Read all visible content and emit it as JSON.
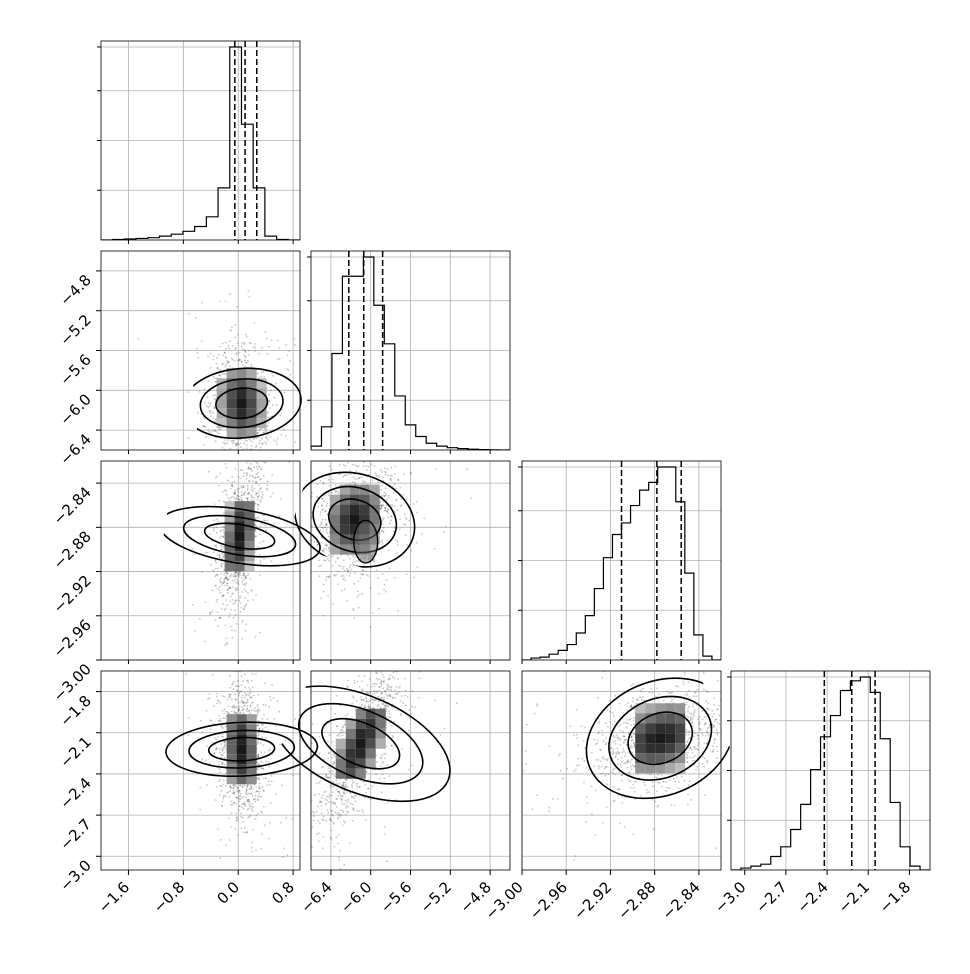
{
  "chart_data": {
    "type": "corner",
    "grid": true,
    "parameters": [
      {
        "range": [
          -2.0,
          0.9
        ],
        "ticks": [
          -1.6,
          -0.8,
          0.0,
          0.8
        ],
        "tick_labels": [
          "−1.6",
          "−0.8",
          "0.0",
          "0.8"
        ],
        "quantiles": [
          -0.05,
          0.1,
          0.27
        ],
        "hist": [
          0,
          0.003,
          0.005,
          0.008,
          0.012,
          0.02,
          0.03,
          0.045,
          0.07,
          0.12,
          0.27,
          1.0,
          0.6,
          0.27,
          0.02,
          0.003,
          0
        ]
      },
      {
        "range": [
          -6.6,
          -4.6
        ],
        "ticks": [
          -6.4,
          -6.0,
          -5.6,
          -5.2,
          -4.8
        ],
        "tick_labels": [
          "−6.4",
          "−6.0",
          "−5.6",
          "−5.2",
          "−4.8"
        ],
        "quantiles": [
          -6.22,
          -6.07,
          -5.88
        ],
        "hist": [
          0.02,
          0.12,
          0.5,
          0.9,
          0.9,
          1.0,
          0.75,
          0.55,
          0.28,
          0.13,
          0.07,
          0.035,
          0.02,
          0.012,
          0.007,
          0.004,
          0.002,
          0.001,
          0
        ]
      },
      {
        "range": [
          -3.0,
          -2.82
        ],
        "ticks": [
          -3.0,
          -2.96,
          -2.92,
          -2.88,
          -2.84
        ],
        "tick_labels": [
          "−3.00",
          "−2.96",
          "−2.92",
          "−2.88",
          "−2.84"
        ],
        "quantiles": [
          -2.91,
          -2.878,
          -2.856
        ],
        "hist": [
          0,
          0.01,
          0.015,
          0.03,
          0.05,
          0.08,
          0.14,
          0.23,
          0.37,
          0.53,
          0.65,
          0.71,
          0.8,
          0.88,
          0.92,
          1.0,
          1.0,
          0.82,
          0.45,
          0.13,
          0.02,
          0
        ]
      },
      {
        "range": [
          -3.1,
          -1.65
        ],
        "ticks": [
          -3.0,
          -2.7,
          -2.4,
          -2.1,
          -1.8
        ],
        "tick_labels": [
          "−3.0",
          "−2.7",
          "−2.4",
          "−2.1",
          "−1.8"
        ],
        "quantiles": [
          -2.42,
          -2.22,
          -2.05
        ],
        "hist": [
          0,
          0.01,
          0.02,
          0.03,
          0.07,
          0.12,
          0.21,
          0.34,
          0.52,
          0.69,
          0.8,
          0.93,
          0.98,
          1.0,
          0.92,
          0.68,
          0.35,
          0.12,
          0.02,
          0
        ]
      }
    ],
    "pairs": [
      {
        "row": 1,
        "col": 0,
        "center": [
          0.05,
          -6.13
        ],
        "sigma": [
          0.22,
          0.26
        ],
        "corr": -0.1,
        "extra": null
      },
      {
        "row": 2,
        "col": 0,
        "center": [
          0.02,
          -2.888
        ],
        "sigma": [
          0.17,
          0.032
        ],
        "corr": 0.45,
        "extra": null
      },
      {
        "row": 2,
        "col": 1,
        "center": [
          -6.16,
          -2.873
        ],
        "sigma": [
          0.2,
          0.024
        ],
        "corr": 0.2,
        "extra": [
          -6.05,
          -2.893
        ]
      },
      {
        "row": 3,
        "col": 0,
        "center": [
          0.05,
          -2.22
        ],
        "sigma": [
          0.17,
          0.24
        ],
        "corr": -0.1,
        "extra": null
      },
      {
        "row": 3,
        "col": 1,
        "center": [
          -6.1,
          -2.18
        ],
        "sigma": [
          0.21,
          0.3
        ],
        "corr": 0.75,
        "extra": null
      },
      {
        "row": 3,
        "col": 2,
        "center": [
          -2.875,
          -2.14
        ],
        "sigma": [
          0.03,
          0.18
        ],
        "corr": 0.3,
        "extra": null
      }
    ]
  }
}
